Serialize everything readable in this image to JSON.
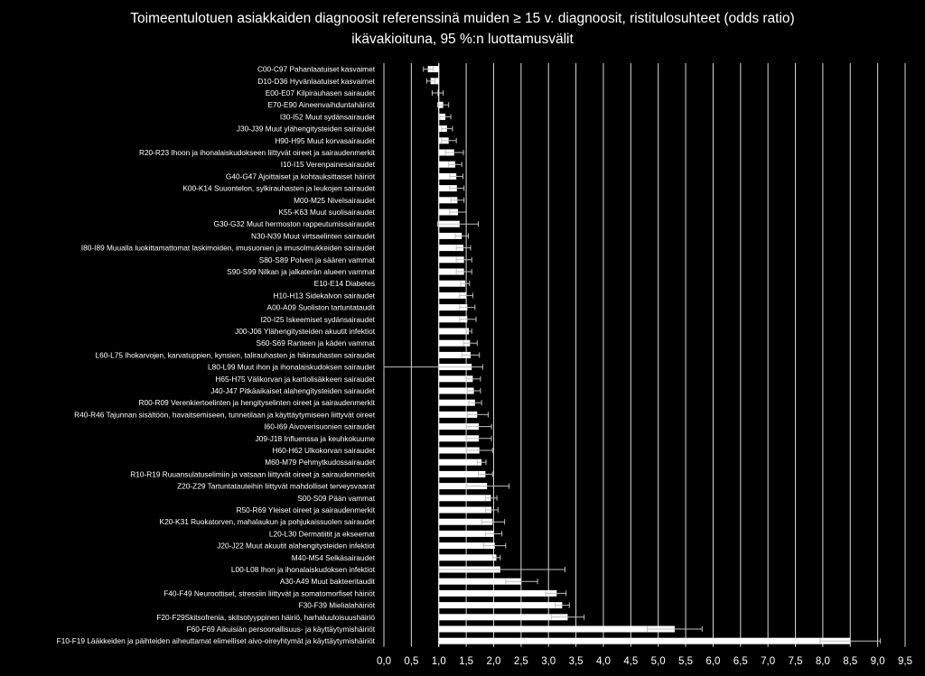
{
  "chart_data": {
    "type": "bar",
    "orientation": "horizontal",
    "title": "Toimeentulotuen asiakkaiden diagnoosit referenssinä muiden ≥ 15 v. diagnoosit, ristitulosuhteet (odds ratio)",
    "subtitle": "ikävakioituna, 95 %:n luottamusvälit",
    "xlim": [
      0,
      9.5
    ],
    "xticks": [
      "0,0",
      "0,5",
      "1,0",
      "1,5",
      "2,0",
      "2,5",
      "3,0",
      "3,5",
      "4,0",
      "4,5",
      "5,0",
      "5,5",
      "6,0",
      "6,5",
      "7,0",
      "7,5",
      "8,0",
      "8,5",
      "9,0",
      "9,5"
    ],
    "grid": true,
    "bar_color": "#ffffff",
    "baseline": 1.0,
    "categories": [
      "C00-C97 Pahanlaatuiset kasvaimet",
      "D10-D36 Hyvänlaatuiset kasvaimet",
      "E00-E07 Kilpirauhasen sairaudet",
      "E70-E90 Aineenvaihduntahäiriöt",
      "I30-I52 Muut sydänsairaudet",
      "J30-J39 Muut ylähengitysteiden sairaudet",
      "H90-H95 Muut korvasairaudet",
      "R20-R23 Ihoon ja ihonalaiskudokseen liittyvät oireet ja sairaudenmerkit",
      "I10-I15 Verenpainesairaudet",
      "G40-G47 Ajoittaiset ja kohtauksittaiset häiriöt",
      "K00-K14 Suuontelon, sylkirauhasten ja leukojen sairaudet",
      "M00-M25 Nivelsairaudet",
      "K55-K63 Muut suolisairaudet",
      "G30-G32 Muut hermoston rappeutumissairaudet",
      "N30-N39 Muut virtsaelinten sairaudet",
      "I80-I89 Muualla luokittamattomat laskimoiden, imusuonien ja imusolmukkeiden sairaudet",
      "S80-S89 Polven ja säären vammat",
      "S90-S99 Nilkan ja jalkaterän alueen vammat",
      "E10-E14 Diabetes",
      "H10-H13 Sidekalvon sairaudet",
      "A00-A09 Suoliston tartuntataudit",
      "I20-I25 Iskeemiset sydänsairaudet",
      "J00-J06 Ylähengitysteiden akuutit infektiot",
      "S60-S69 Ranteen ja käden vammat",
      "L60-L75 Ihokarvojen, karvatuppien, kynsien, talirauhasten ja hikirauhasten sairaudet",
      "L80-L99 Muut ihon ja ihonalaiskudoksen sairaudet",
      "H65-H75 Välikorvan ja kartiolisäkkeen sairaudet",
      "J40-J47 Pitkäaikaiset alahengitysteiden sairaudet",
      "R00-R09 Verenkiertoelinten ja hengityselinten oireet ja sairaudenmerkit",
      "R40-R46 Tajunnan sisältöön, havaitsemiseen, tunnetilaan ja käyttäytymiseen liittyvät oireet",
      "I60-I69 Aivoverisuonien sairaudet",
      "J09-J18 Influenssa ja keuhkokuume",
      "H60-H62 Ulkokorvan sairaudet",
      "M60-M79 Pehmytkudossairaudet",
      "R10-R19 Ruuansulatuselimiin ja vatsaan liittyvät oireet ja sairaudenmerkit",
      "Z20-Z29 Tartuntatauteihin liittyvät mahdolliset terveysvaarat",
      "S00-S09 Pään vammat",
      "R50-R69 Yleiset oireet ja sairaudenmerkit",
      "K20-K31 Ruokatorven, mahalaukun ja pohjukaissuolen sairaudet",
      "L20-L30 Dermatiitit ja ekseemat",
      "J20-J22 Muut akuutit alahengitysteiden infektiot",
      "M40-M54 Selkäsairaudet",
      "L00-L08 Ihon ja ihonalaiskudoksen infektiot",
      "A30-A49 Muut bakteeritaudit",
      "F40-F49 Neuroottiset, stressiin liittyvät ja somatomorfiset häiriöt",
      "F30-F39 Mielialahäiriöt",
      "F20-F29Skitsofrenia, skitsotyyppinen häiriö, harhaluuloisuushäiriö",
      "F60-F69 Aikuisiän persoonallisuus- ja käyttäytymishäiriöt",
      "F10-F19 Lääkkeiden ja päihteiden aiheuttamat elimelliset aivo-oireyhtymät ja käyttäytymishäiriöt"
    ],
    "values": [
      0.8,
      0.85,
      0.98,
      1.08,
      1.12,
      1.15,
      1.18,
      1.28,
      1.3,
      1.32,
      1.33,
      1.34,
      1.35,
      1.38,
      1.42,
      1.45,
      1.46,
      1.46,
      1.48,
      1.5,
      1.52,
      1.52,
      1.55,
      1.57,
      1.58,
      1.6,
      1.62,
      1.64,
      1.66,
      1.7,
      1.73,
      1.73,
      1.74,
      1.78,
      1.85,
      1.88,
      1.95,
      1.96,
      1.98,
      2.0,
      2.02,
      2.05,
      2.12,
      2.5,
      3.15,
      3.25,
      3.35,
      5.3,
      8.5
    ],
    "ci_low": [
      0.72,
      0.78,
      0.88,
      0.98,
      1.02,
      1.05,
      1.05,
      1.12,
      1.18,
      1.2,
      1.2,
      1.22,
      1.2,
      0.98,
      1.3,
      1.32,
      1.32,
      1.32,
      1.4,
      1.38,
      1.38,
      1.38,
      1.5,
      1.45,
      1.42,
      0.0,
      1.5,
      1.52,
      1.55,
      1.52,
      1.5,
      1.5,
      1.5,
      1.7,
      1.72,
      1.5,
      1.85,
      1.85,
      1.78,
      1.85,
      1.82,
      1.98,
      1.0,
      2.22,
      2.95,
      3.12,
      3.05,
      4.8,
      7.95
    ],
    "ci_high": [
      0.9,
      0.93,
      1.08,
      1.18,
      1.22,
      1.25,
      1.32,
      1.45,
      1.42,
      1.44,
      1.46,
      1.46,
      1.5,
      1.72,
      1.54,
      1.58,
      1.6,
      1.6,
      1.56,
      1.62,
      1.66,
      1.68,
      1.6,
      1.7,
      1.74,
      1.8,
      1.76,
      1.76,
      1.78,
      1.9,
      1.96,
      1.96,
      1.98,
      1.86,
      1.98,
      2.28,
      2.06,
      2.08,
      2.2,
      2.15,
      2.22,
      2.12,
      3.3,
      2.8,
      3.32,
      3.38,
      3.65,
      5.8,
      9.05
    ]
  }
}
